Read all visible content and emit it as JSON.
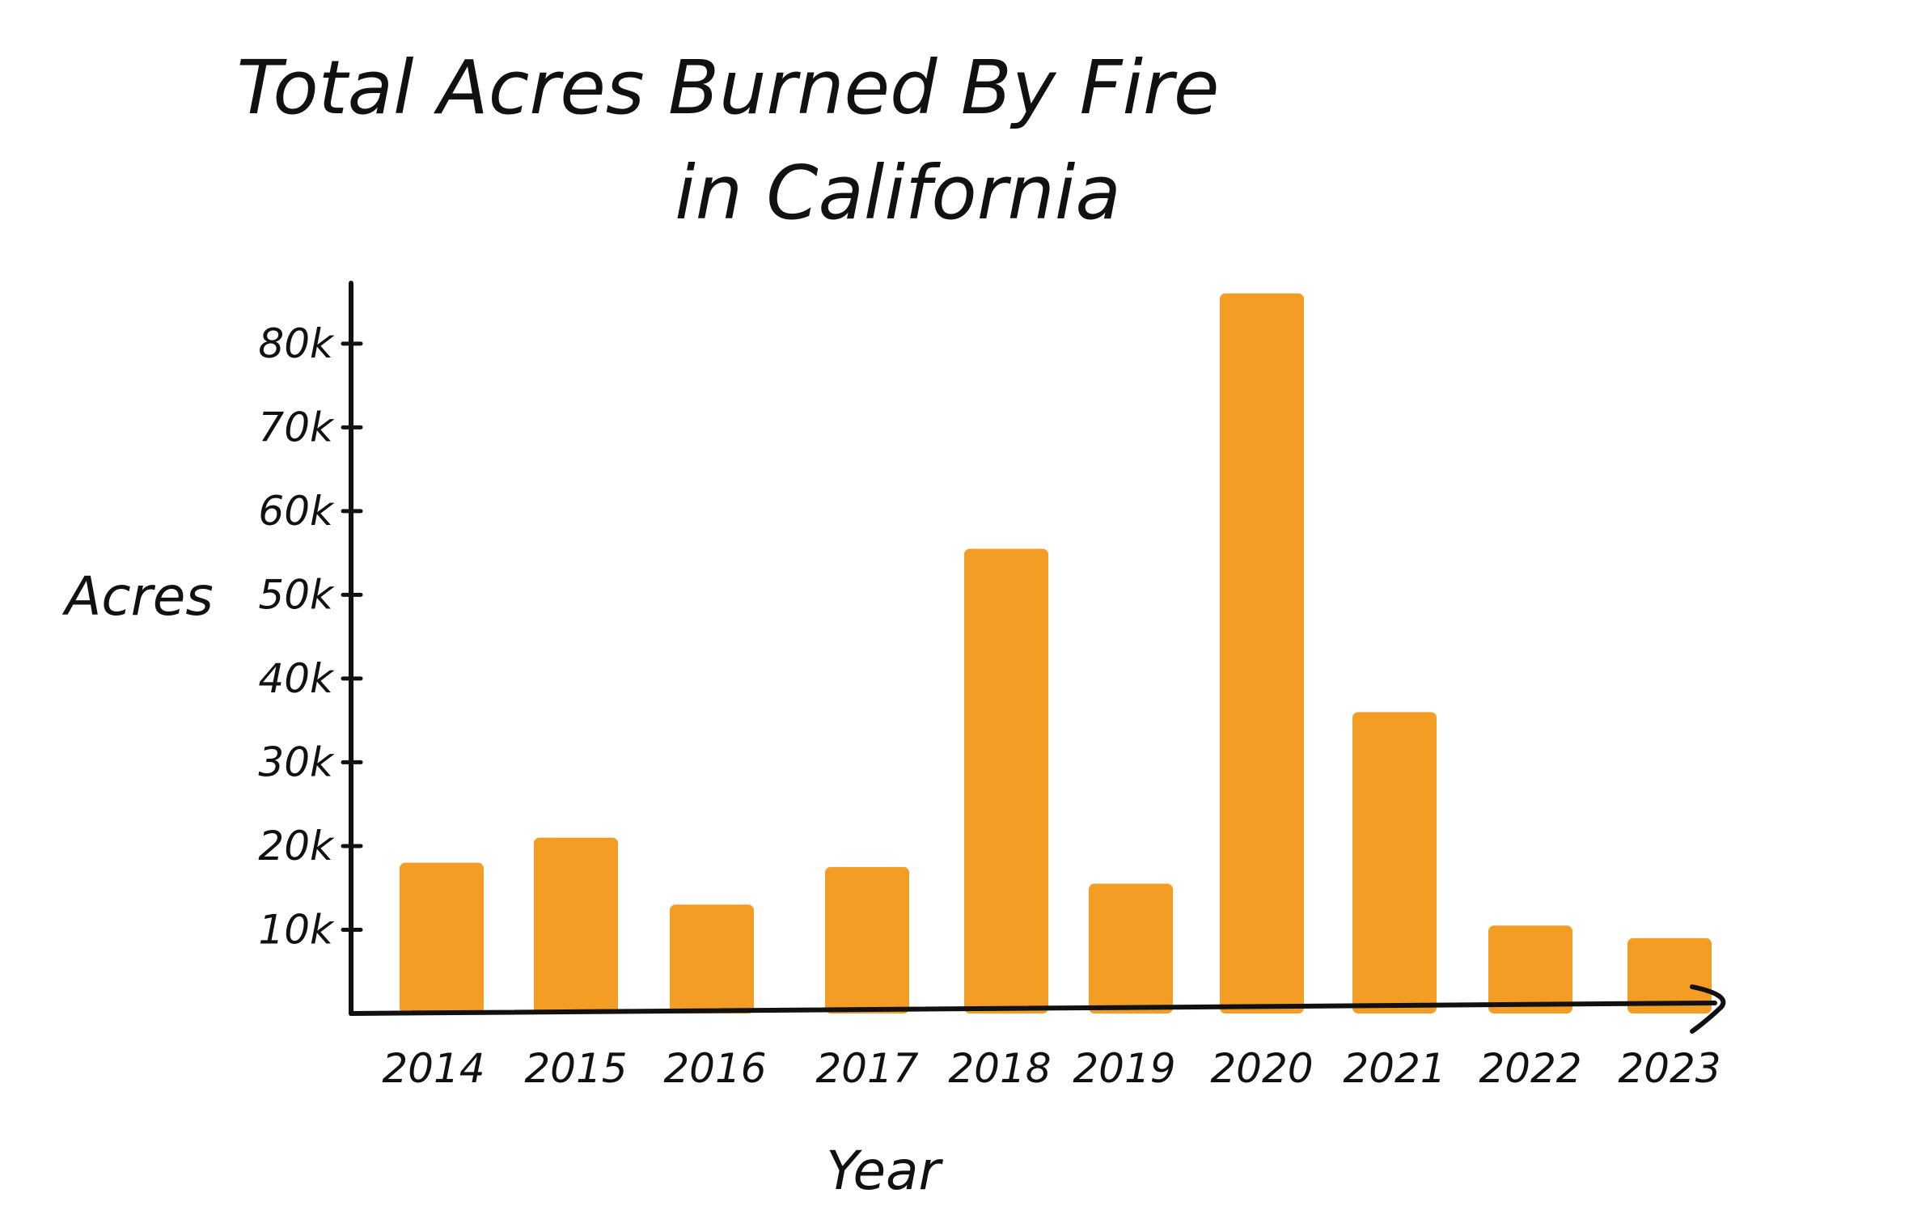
{
  "chart_data": {
    "type": "bar",
    "title": "Total Acres Burned By Fire",
    "subtitle": "in California",
    "xlabel": "Year",
    "ylabel": "Acres",
    "categories": [
      "2014",
      "2015",
      "2016",
      "2017",
      "2018",
      "2019",
      "2020",
      "2021",
      "2022",
      "2023"
    ],
    "values": [
      18000,
      21000,
      13000,
      17500,
      55500,
      15500,
      86000,
      36000,
      10500,
      9000
    ],
    "yticks": [
      {
        "value": 10000,
        "label": "10k"
      },
      {
        "value": 20000,
        "label": "20k"
      },
      {
        "value": 30000,
        "label": "30k"
      },
      {
        "value": 40000,
        "label": "40k"
      },
      {
        "value": 50000,
        "label": "50k"
      },
      {
        "value": 60000,
        "label": "60k"
      },
      {
        "value": 70000,
        "label": "70k"
      },
      {
        "value": 80000,
        "label": "80k"
      }
    ],
    "ylim": [
      0,
      88000
    ],
    "grid": false,
    "legend": "none",
    "bar_color": "#F49D25",
    "axis_color": "#111111"
  }
}
